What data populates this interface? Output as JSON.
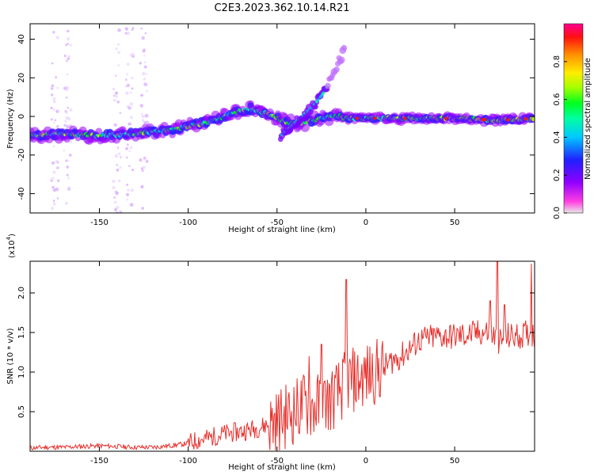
{
  "title": "C2E3.2023.362.10.14.R21",
  "colorbar": {
    "label": "Normalized spectral amplitude",
    "ticks": [
      0.0,
      0.2,
      0.4,
      0.6,
      0.8
    ],
    "tick_labels": [
      "0.0",
      "0.2",
      "0.4",
      "0.6",
      "0.8"
    ],
    "colors": [
      "#dcdcdc",
      "#ff2de0",
      "#a000ff",
      "#2020ff",
      "#00c8ff",
      "#00ffa0",
      "#00ff00",
      "#c8ff00",
      "#ffe000",
      "#ff9000",
      "#ff1010",
      "#ff0090"
    ]
  },
  "chart_data": [
    {
      "type": "heatmap",
      "xlabel": "Height of straight line (km)",
      "ylabel": "Frequency (Hz)",
      "xlim": [
        -189,
        95
      ],
      "ylim": [
        -50,
        48
      ],
      "xticks": [
        -150,
        -100,
        -50,
        0,
        50
      ],
      "xtick_labels": [
        "-150",
        "-100",
        "-50",
        "0",
        "50"
      ],
      "yticks": [
        -40,
        -20,
        0,
        20,
        40
      ],
      "ytick_labels": [
        "-40",
        "-20",
        "0",
        "20",
        "40"
      ],
      "ridge": {
        "x": [
          -189,
          -170,
          -150,
          -130,
          -110,
          -95,
          -85,
          -75,
          -65,
          -55,
          -45,
          -38,
          -30,
          -20,
          -15,
          -10,
          0,
          25,
          50,
          75,
          95
        ],
        "y": [
          -10,
          -9,
          -10,
          -9,
          -7,
          -4,
          -2,
          2,
          4,
          1,
          -3,
          -4,
          -2,
          0,
          0,
          -1,
          -1,
          -1,
          -1,
          -2,
          -1
        ]
      },
      "upper_branch": {
        "x": [
          -48,
          -42,
          -36,
          -30,
          -24,
          -20,
          -16,
          -12
        ],
        "y": [
          -10,
          -5,
          0,
          5,
          12,
          19,
          27,
          34
        ]
      }
    },
    {
      "type": "line",
      "xlabel": "Height of straight line (km)",
      "ylabel": "SNR (10 * v/v)",
      "y_multiplier_label": "(x10",
      "y_multiplier_exp": "4",
      "xlim": [
        -189,
        95
      ],
      "ylim": [
        0,
        2.4
      ],
      "xticks": [
        -150,
        -100,
        -50,
        0,
        50
      ],
      "xtick_labels": [
        "-150",
        "-100",
        "-50",
        "0",
        "50"
      ],
      "yticks": [
        0.5,
        1.0,
        1.5,
        2.0
      ],
      "ytick_labels": [
        "0.5",
        "1.0",
        "1.5",
        "2.0"
      ],
      "series": [
        {
          "color": "#e8302c",
          "x": [
            -189,
            -180,
            -170,
            -160,
            -150,
            -140,
            -130,
            -120,
            -110,
            -100,
            -95,
            -90,
            -80,
            -70,
            -60,
            -50,
            -45,
            -40,
            -35,
            -30,
            -25,
            -20,
            -15,
            -10,
            -5,
            0,
            5,
            10,
            15,
            20,
            25,
            30,
            40,
            50,
            60,
            65,
            70,
            72,
            75,
            78,
            80,
            85,
            90,
            93,
            95
          ],
          "y": [
            0.04,
            0.05,
            0.05,
            0.06,
            0.07,
            0.06,
            0.05,
            0.05,
            0.07,
            0.1,
            0.14,
            0.16,
            0.22,
            0.25,
            0.3,
            0.38,
            0.45,
            0.5,
            0.6,
            0.55,
            0.6,
            0.65,
            0.75,
            0.9,
            0.9,
            0.95,
            1.0,
            1.05,
            1.15,
            1.2,
            1.3,
            1.4,
            1.45,
            1.45,
            1.48,
            1.5,
            1.5,
            1.45,
            1.4,
            1.35,
            1.45,
            1.45,
            1.48,
            1.5,
            1.45
          ],
          "spikes": [
            {
              "x": -11,
              "y": 2.17
            },
            {
              "x": -32,
              "y": 1.2
            },
            {
              "x": -25,
              "y": 1.35
            },
            {
              "x": 74,
              "y": 2.4
            },
            {
              "x": 70,
              "y": 1.9
            },
            {
              "x": 78,
              "y": 1.85
            },
            {
              "x": 93,
              "y": 2.37
            }
          ]
        }
      ]
    }
  ]
}
